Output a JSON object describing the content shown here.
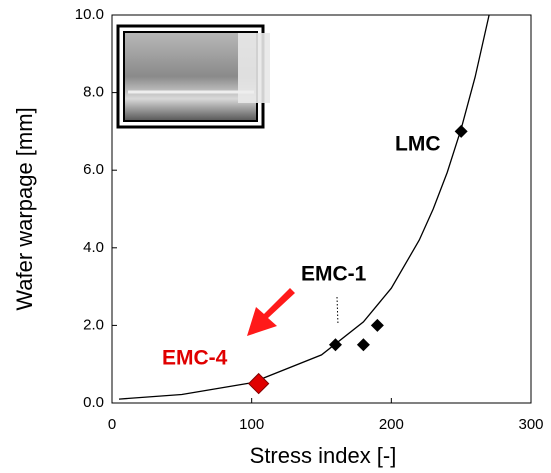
{
  "chart_data": {
    "type": "scatter",
    "xlabel": "Stress index [-]",
    "ylabel": "Wafer warpage [mm]",
    "xlim": [
      0,
      300
    ],
    "xticks": [
      0,
      100,
      200,
      300
    ],
    "ylim": [
      0,
      10
    ],
    "yticks": [
      {
        "value": 0,
        "label": "0.0"
      },
      {
        "value": 2,
        "label": "2.0"
      },
      {
        "value": 4,
        "label": "4.0"
      },
      {
        "value": 6,
        "label": "6.0"
      },
      {
        "value": 8,
        "label": "8.0"
      },
      {
        "value": 10,
        "label": "10.0"
      }
    ],
    "series": [
      {
        "color": "#000000",
        "x": [
          160,
          180,
          190,
          250
        ],
        "values": [
          1.5,
          1.5,
          2.0,
          7.0
        ]
      },
      {
        "color": "#e00000",
        "x": [
          105
        ],
        "values": [
          0.5
        ]
      }
    ],
    "curve": {
      "color": "#000000",
      "x": [
        5,
        50,
        100,
        150,
        180,
        200,
        220,
        230,
        240,
        250,
        260,
        270
      ],
      "values": [
        0.1,
        0.22,
        0.52,
        1.24,
        2.09,
        2.96,
        4.2,
        5.0,
        5.94,
        7.07,
        8.4,
        10
      ]
    },
    "annotations": [
      "LMC",
      "EMC-1",
      "EMC-4"
    ],
    "grid": false
  }
}
